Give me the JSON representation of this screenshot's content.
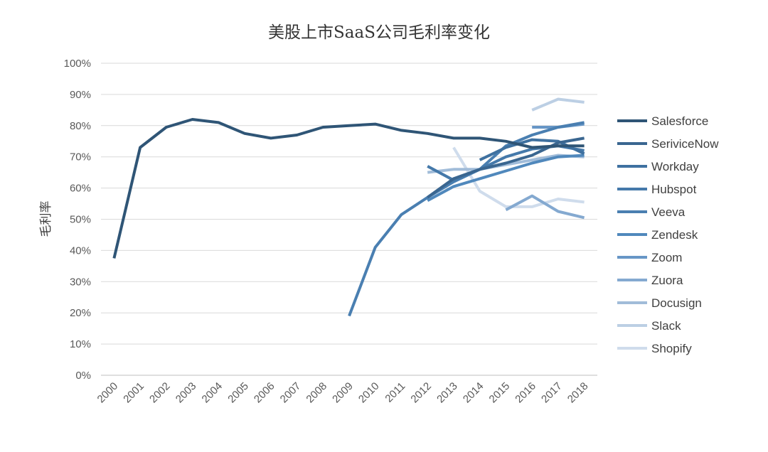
{
  "chart_data": {
    "type": "line",
    "title": "美股上市SaaS公司毛利率变化",
    "xlabel": "",
    "ylabel": "毛利率",
    "categories": [
      "2000",
      "2001",
      "2002",
      "2003",
      "2004",
      "2005",
      "2006",
      "2007",
      "2008",
      "2009",
      "2010",
      "2011",
      "2012",
      "2013",
      "2014",
      "2015",
      "2016",
      "2017",
      "2018"
    ],
    "ylim": [
      0,
      100
    ],
    "yticks": [
      "0%",
      "10%",
      "20%",
      "30%",
      "40%",
      "50%",
      "60%",
      "70%",
      "80%",
      "90%",
      "100%"
    ],
    "grid": true,
    "legend_position": "right",
    "series": [
      {
        "name": "Salesforce",
        "color": "#2f5576",
        "values": [
          37.5,
          73,
          79.5,
          82,
          81,
          77.5,
          76,
          77,
          79.5,
          80,
          80.5,
          78.5,
          77.5,
          76,
          76,
          75,
          73,
          73.5,
          73.5
        ]
      },
      {
        "name": "SeriviceNow",
        "color": "#3a6690",
        "values": [
          null,
          null,
          null,
          null,
          null,
          null,
          null,
          null,
          null,
          null,
          null,
          null,
          57,
          63,
          66,
          68,
          70.5,
          74.5,
          76
        ]
      },
      {
        "name": "Workday",
        "color": "#3f71a0",
        "values": [
          null,
          null,
          null,
          null,
          null,
          null,
          null,
          null,
          null,
          null,
          null,
          null,
          null,
          null,
          69,
          73,
          75.5,
          75,
          71
        ]
      },
      {
        "name": "Hubspot",
        "color": "#4579aa",
        "values": [
          null,
          null,
          null,
          null,
          null,
          null,
          null,
          null,
          null,
          null,
          null,
          null,
          67,
          62.5,
          66,
          70,
          72.5,
          73.5,
          72
        ]
      },
      {
        "name": "Veeva",
        "color": "#4a7fb1",
        "values": [
          null,
          null,
          null,
          null,
          null,
          null,
          null,
          null,
          null,
          19,
          41,
          51.5,
          57,
          62,
          66,
          73.5,
          77,
          79.5,
          81
        ]
      },
      {
        "name": "Zendesk",
        "color": "#5088bc",
        "values": [
          null,
          null,
          null,
          null,
          null,
          null,
          null,
          null,
          null,
          null,
          null,
          null,
          56,
          60.5,
          63,
          65.5,
          68,
          70,
          70.5
        ]
      },
      {
        "name": "Zoom",
        "color": "#6796c6",
        "values": [
          null,
          null,
          null,
          null,
          null,
          null,
          null,
          null,
          null,
          null,
          null,
          null,
          null,
          null,
          null,
          null,
          79.5,
          79.5,
          80.5
        ]
      },
      {
        "name": "Zuora",
        "color": "#84a9d0",
        "values": [
          null,
          null,
          null,
          null,
          null,
          null,
          null,
          null,
          null,
          null,
          null,
          null,
          null,
          null,
          null,
          53,
          57.5,
          52.5,
          50.5
        ]
      },
      {
        "name": "Docusign",
        "color": "#a1bcd9",
        "values": [
          null,
          null,
          null,
          null,
          null,
          null,
          null,
          null,
          null,
          null,
          null,
          null,
          65,
          66,
          66,
          67.5,
          69,
          70.5,
          70
        ]
      },
      {
        "name": "Slack",
        "color": "#bccfe4",
        "values": [
          null,
          null,
          null,
          null,
          null,
          null,
          null,
          null,
          null,
          null,
          null,
          null,
          null,
          null,
          null,
          null,
          85,
          88.5,
          87.5
        ]
      },
      {
        "name": "Shopify",
        "color": "#cfdcec",
        "values": [
          null,
          null,
          null,
          null,
          null,
          null,
          null,
          null,
          null,
          null,
          null,
          null,
          null,
          73,
          59,
          54,
          54,
          56.5,
          55.5
        ]
      }
    ]
  }
}
